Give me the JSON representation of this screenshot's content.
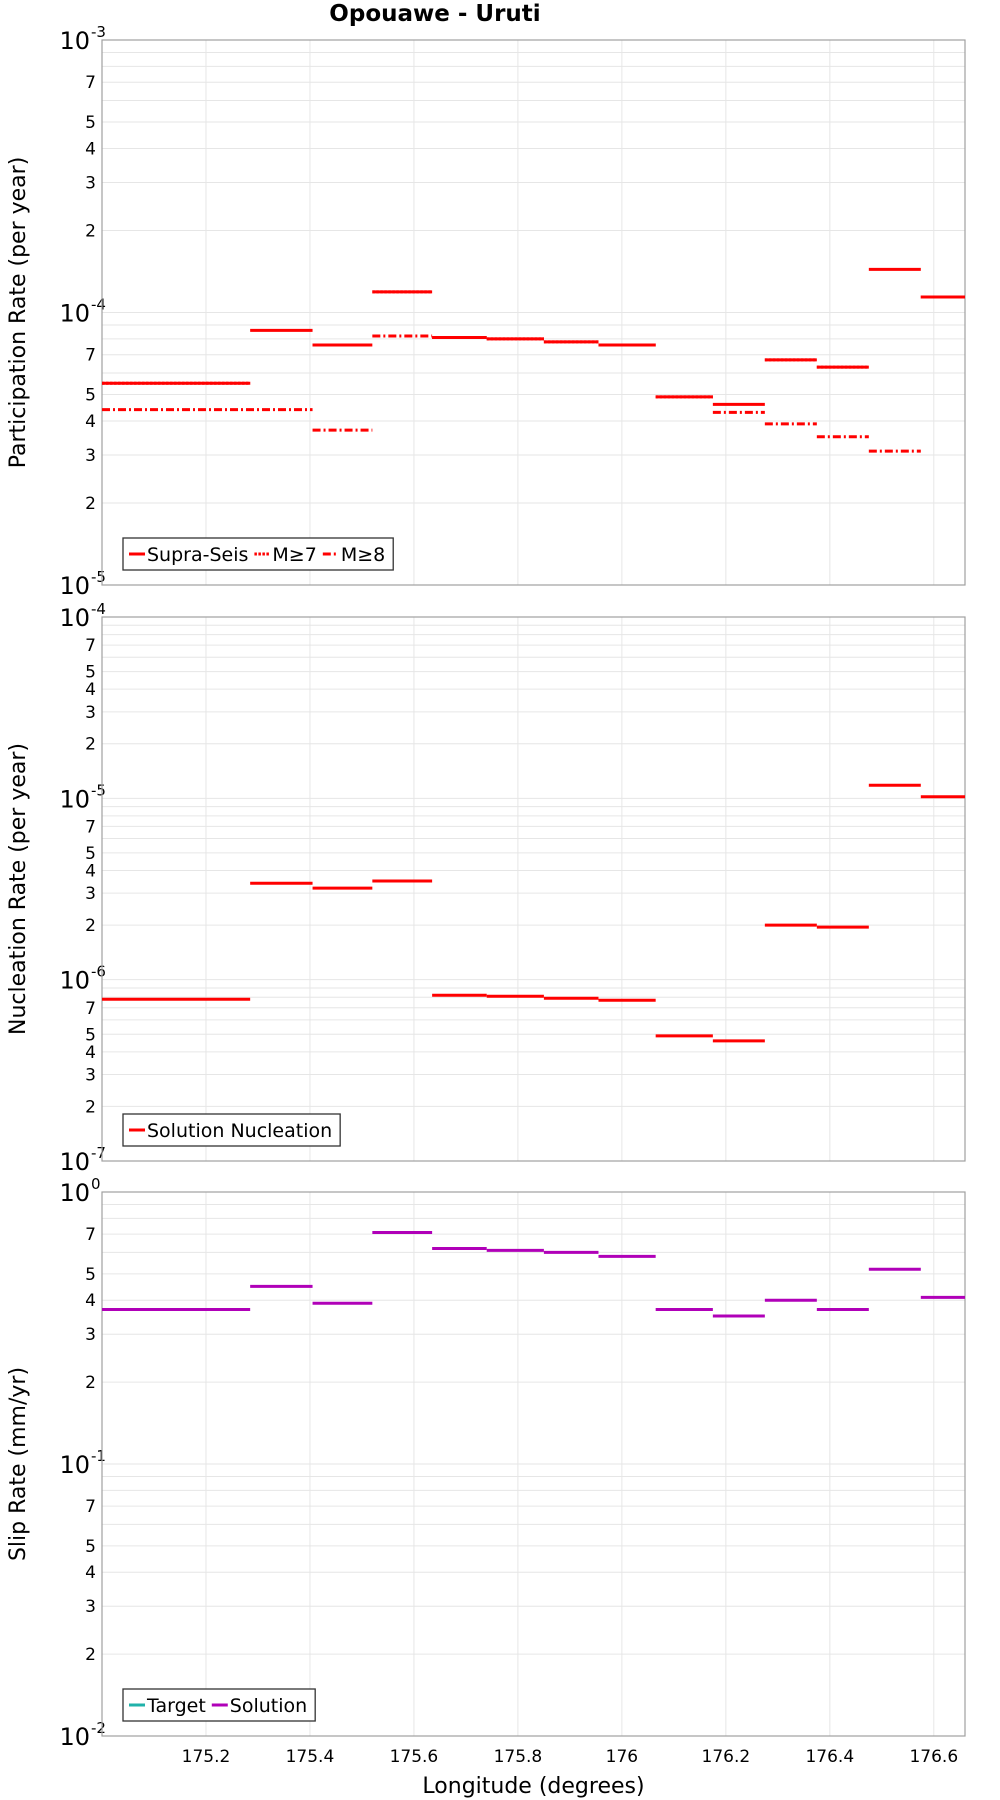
{
  "colors": {
    "supra": "#ff0000",
    "nucleation": "#ff0000",
    "target": "#20b2aa",
    "solution": "#b000b8",
    "grid": "#e6e6e6",
    "frame": "#a0a0a0"
  },
  "chart_data": [
    {
      "type": "line",
      "title": "Opouawe - Uruti",
      "ylabel": "Participation Rate (per year)",
      "yscale": "log",
      "ylim": [
        1e-05,
        0.001
      ],
      "xlim": [
        175.0,
        176.66
      ],
      "legend": {
        "placement": "bottom-left",
        "labels": [
          "Supra-Seis",
          "M≥7",
          "M≥8"
        ]
      },
      "series": [
        {
          "name": "Supra-Seis",
          "style": "solid",
          "segments": [
            [
              175.0,
              175.285,
              5.5e-05
            ],
            [
              175.285,
              175.405,
              8.6e-05
            ],
            [
              175.405,
              175.52,
              7.6e-05
            ],
            [
              175.52,
              175.635,
              0.000119
            ],
            [
              175.635,
              175.74,
              8.1e-05
            ],
            [
              175.74,
              175.85,
              8e-05
            ],
            [
              175.85,
              175.955,
              7.8e-05
            ],
            [
              175.955,
              176.065,
              7.6e-05
            ],
            [
              176.065,
              176.175,
              4.9e-05
            ],
            [
              176.175,
              176.275,
              4.6e-05
            ],
            [
              176.275,
              176.375,
              6.7e-05
            ],
            [
              176.375,
              176.475,
              6.3e-05
            ],
            [
              176.475,
              176.575,
              0.000144
            ],
            [
              176.575,
              176.66,
              0.000114
            ]
          ]
        },
        {
          "name": "M≥7",
          "style": "dotted",
          "segments": [
            [
              175.0,
              175.285,
              5.5e-05
            ],
            [
              175.405,
              175.52,
              7.6e-05
            ],
            [
              175.52,
              175.635,
              0.000119
            ],
            [
              175.635,
              175.74,
              8.1e-05
            ],
            [
              175.74,
              175.85,
              8e-05
            ],
            [
              175.85,
              175.955,
              7.8e-05
            ],
            [
              175.955,
              176.065,
              7.6e-05
            ],
            [
              176.065,
              176.175,
              4.9e-05
            ],
            [
              176.275,
              176.375,
              6.7e-05
            ],
            [
              176.375,
              176.475,
              6.3e-05
            ],
            [
              176.575,
              176.66,
              0.000114
            ]
          ]
        },
        {
          "name": "M≥8",
          "style": "dashdot",
          "segments": [
            [
              175.0,
              175.405,
              4.4e-05
            ],
            [
              175.405,
              175.52,
              3.7e-05
            ],
            [
              175.52,
              175.635,
              8.2e-05
            ],
            [
              176.175,
              176.275,
              4.3e-05
            ],
            [
              176.275,
              176.375,
              3.9e-05
            ],
            [
              176.375,
              176.475,
              3.5e-05
            ],
            [
              176.475,
              176.575,
              3.1e-05
            ]
          ]
        }
      ]
    },
    {
      "type": "line",
      "ylabel": "Nucleation Rate (per year)",
      "yscale": "log",
      "ylim": [
        1e-07,
        0.0001
      ],
      "xlim": [
        175.0,
        176.66
      ],
      "legend": {
        "placement": "bottom-left",
        "labels": [
          "Solution Nucleation"
        ]
      },
      "series": [
        {
          "name": "Solution Nucleation",
          "style": "solid",
          "segments": [
            [
              175.0,
              175.285,
              7.8e-07
            ],
            [
              175.285,
              175.405,
              3.4e-06
            ],
            [
              175.405,
              175.52,
              3.2e-06
            ],
            [
              175.52,
              175.635,
              3.5e-06
            ],
            [
              175.635,
              175.74,
              8.2e-07
            ],
            [
              175.74,
              175.85,
              8.1e-07
            ],
            [
              175.85,
              175.955,
              7.9e-07
            ],
            [
              175.955,
              176.065,
              7.7e-07
            ],
            [
              176.065,
              176.175,
              4.9e-07
            ],
            [
              176.175,
              176.275,
              4.6e-07
            ],
            [
              176.275,
              176.375,
              2e-06
            ],
            [
              176.375,
              176.475,
              1.95e-06
            ],
            [
              176.475,
              176.575,
              1.18e-05
            ],
            [
              176.575,
              176.66,
              1.02e-05
            ]
          ]
        }
      ]
    },
    {
      "type": "line",
      "ylabel": "Slip Rate (mm/yr)",
      "xlabel": "Longitude (degrees)",
      "yscale": "log",
      "ylim": [
        0.01,
        1
      ],
      "xlim": [
        175.0,
        176.66
      ],
      "xticks": [
        "175.2",
        "175.4",
        "175.6",
        "175.8",
        "176",
        "176.2",
        "176.4",
        "176.6"
      ],
      "legend": {
        "placement": "bottom-left",
        "labels": [
          "Target",
          "Solution"
        ]
      },
      "series": [
        {
          "name": "Solution",
          "style": "solid",
          "segments": [
            [
              175.0,
              175.285,
              0.37
            ],
            [
              175.285,
              175.405,
              0.45
            ],
            [
              175.405,
              175.52,
              0.39
            ],
            [
              175.52,
              175.635,
              0.71
            ],
            [
              175.635,
              175.74,
              0.62
            ],
            [
              175.74,
              175.85,
              0.61
            ],
            [
              175.85,
              175.955,
              0.6
            ],
            [
              175.955,
              176.065,
              0.58
            ],
            [
              176.065,
              176.175,
              0.37
            ],
            [
              176.175,
              176.275,
              0.35
            ],
            [
              176.275,
              176.375,
              0.4
            ],
            [
              176.375,
              176.475,
              0.37
            ],
            [
              176.475,
              176.575,
              0.52
            ],
            [
              176.575,
              176.66,
              0.41
            ]
          ]
        }
      ]
    }
  ]
}
